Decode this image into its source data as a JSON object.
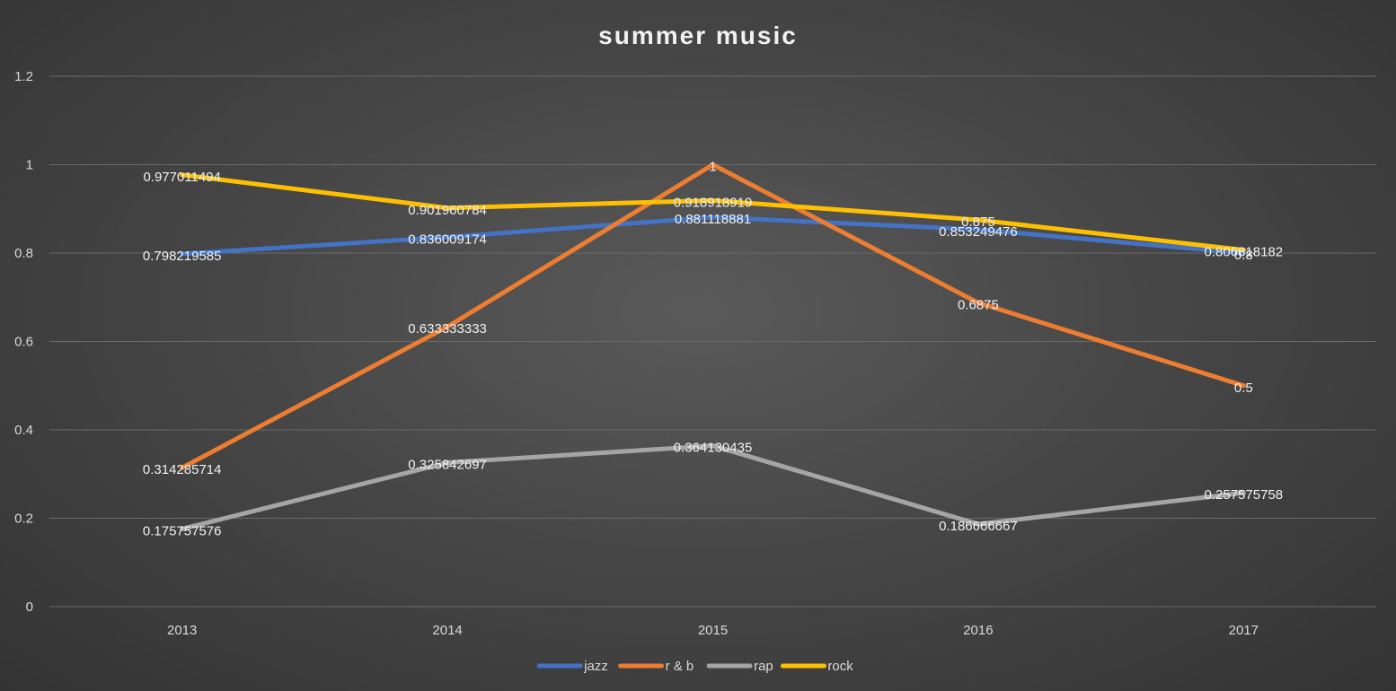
{
  "chart_data": {
    "type": "line",
    "title": "summer music",
    "xlabel": "",
    "ylabel": "",
    "categories": [
      "2013",
      "2014",
      "2015",
      "2016",
      "2017"
    ],
    "ylim": [
      0,
      1.2
    ],
    "yticks": [
      "0",
      "0.2",
      "0.4",
      "0.6",
      "0.8",
      "1",
      "1.2"
    ],
    "grid": "horizontal",
    "legend_position": "bottom",
    "series": [
      {
        "name": "jazz",
        "color": "#4472C4",
        "values": [
          0.798219585,
          0.836009174,
          0.881118881,
          0.853249476,
          0.8
        ],
        "labels": [
          "0.798219585",
          "0.836009174",
          "0.881118881",
          "0.853249476",
          "0.8"
        ]
      },
      {
        "name": "r & b",
        "color": "#ED7D31",
        "values": [
          0.314285714,
          0.633333333,
          1,
          0.6875,
          0.5
        ],
        "labels": [
          "0.314285714",
          "0.633333333",
          "1",
          "0.6875",
          "0.5"
        ]
      },
      {
        "name": "rap",
        "color": "#A5A5A5",
        "values": [
          0.175757576,
          0.325842697,
          0.364130435,
          0.186666667,
          0.257575758
        ],
        "labels": [
          "0.175757576",
          "0.325842697",
          "0.364130435",
          "0.186666667",
          "0.257575758"
        ]
      },
      {
        "name": "rock",
        "color": "#FFC000",
        "values": [
          0.977011494,
          0.901960784,
          0.918918919,
          0.875,
          0.806818182
        ],
        "labels": [
          "0.977011494",
          "0.901960784",
          "0.918918919",
          "0.875",
          "0.806818182"
        ]
      }
    ]
  }
}
